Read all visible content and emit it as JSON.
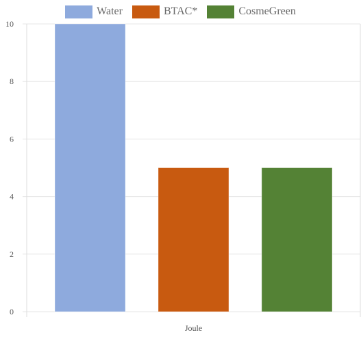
{
  "chart_data": {
    "type": "bar",
    "categories": [
      "Joule"
    ],
    "series": [
      {
        "name": "Water",
        "values": [
          10
        ],
        "color": "#8eaadd"
      },
      {
        "name": "BTAC*",
        "values": [
          5
        ],
        "color": "#c85a10"
      },
      {
        "name": "CosmeGreen",
        "values": [
          5
        ],
        "color": "#548235"
      }
    ],
    "title": "",
    "xlabel": "",
    "ylabel": "",
    "ylim": [
      0,
      10
    ],
    "yticks": [
      0,
      2,
      4,
      6,
      8,
      10
    ],
    "grid": true,
    "legend_position": "top"
  }
}
